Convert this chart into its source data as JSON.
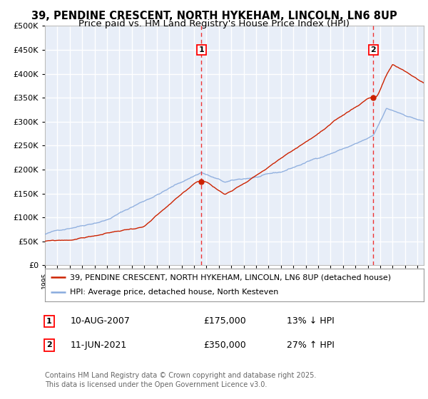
{
  "title": "39, PENDINE CRESCENT, NORTH HYKEHAM, LINCOLN, LN6 8UP",
  "subtitle": "Price paid vs. HM Land Registry's House Price Index (HPI)",
  "ylim": [
    0,
    500000
  ],
  "yticks": [
    0,
    50000,
    100000,
    150000,
    200000,
    250000,
    300000,
    350000,
    400000,
    450000,
    500000
  ],
  "ytick_labels": [
    "£0",
    "£50K",
    "£100K",
    "£150K",
    "£200K",
    "£250K",
    "£300K",
    "£350K",
    "£400K",
    "£450K",
    "£500K"
  ],
  "xlim_start": 1995.0,
  "xlim_end": 2025.5,
  "bg_color": "#e8eef8",
  "grid_color": "#ffffff",
  "red_color": "#cc2200",
  "blue_color": "#88aadd",
  "vline_color": "#ee3333",
  "marker1_year": 2007.6,
  "marker2_year": 2021.45,
  "sale1_price": 175000,
  "sale2_price": 350000,
  "legend_line1": "39, PENDINE CRESCENT, NORTH HYKEHAM, LINCOLN, LN6 8UP (detached house)",
  "legend_line2": "HPI: Average price, detached house, North Kesteven",
  "ann1_label": "1",
  "ann1_date": "10-AUG-2007",
  "ann1_price": "£175,000",
  "ann1_hpi": "13% ↓ HPI",
  "ann2_label": "2",
  "ann2_date": "11-JUN-2021",
  "ann2_price": "£350,000",
  "ann2_hpi": "27% ↑ HPI",
  "footer": "Contains HM Land Registry data © Crown copyright and database right 2025.\nThis data is licensed under the Open Government Licence v3.0.",
  "title_fontsize": 10.5,
  "subtitle_fontsize": 9.5,
  "tick_fontsize": 8,
  "legend_fontsize": 8,
  "ann_fontsize": 9,
  "footer_fontsize": 7
}
